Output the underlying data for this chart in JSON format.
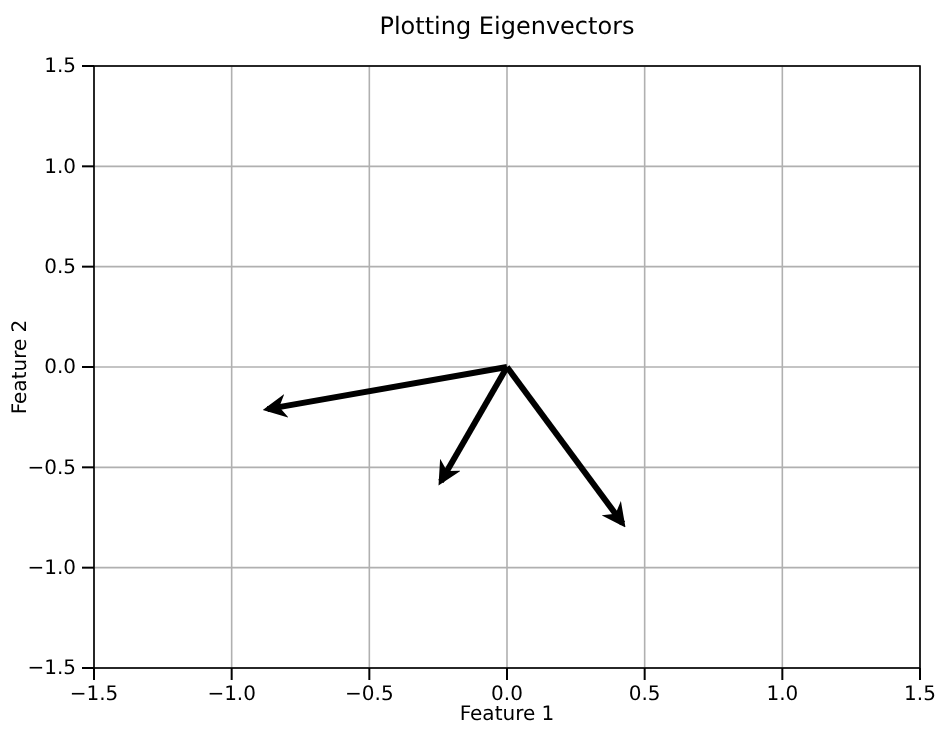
{
  "chart_data": {
    "type": "line",
    "title": "Plotting Eigenvectors",
    "xlabel": "Feature 1",
    "ylabel": "Feature 2",
    "xlim": [
      -1.5,
      1.5
    ],
    "ylim": [
      -1.5,
      1.5
    ],
    "xticks": [
      {
        "value": -1.5,
        "label": "−1.5"
      },
      {
        "value": -1.0,
        "label": "−1.0"
      },
      {
        "value": -0.5,
        "label": "−0.5"
      },
      {
        "value": 0,
        "label": "0.0"
      },
      {
        "value": 0.5,
        "label": "0.5"
      },
      {
        "value": 1.0,
        "label": "1.0"
      },
      {
        "value": 1.5,
        "label": "1.5"
      }
    ],
    "yticks": [
      {
        "value": -1.5,
        "label": "−1.5"
      },
      {
        "value": -1.0,
        "label": "−1.0"
      },
      {
        "value": -0.5,
        "label": "−0.5"
      },
      {
        "value": 0,
        "label": "0.0"
      },
      {
        "value": 0.5,
        "label": "0.5"
      },
      {
        "value": 1.0,
        "label": "1.0"
      },
      {
        "value": 1.5,
        "label": "1.5"
      }
    ],
    "grid": true,
    "line_style": "solid",
    "series": [
      {
        "color": "#000000",
        "x": [
          0,
          -0.87
        ],
        "values": [
          0,
          -0.21
        ]
      },
      {
        "color": "#000000",
        "x": [
          0,
          -0.24
        ],
        "values": [
          0,
          -0.57
        ]
      },
      {
        "color": "#000000",
        "x": [
          0,
          0.42
        ],
        "values": [
          0,
          -0.78
        ]
      }
    ]
  }
}
